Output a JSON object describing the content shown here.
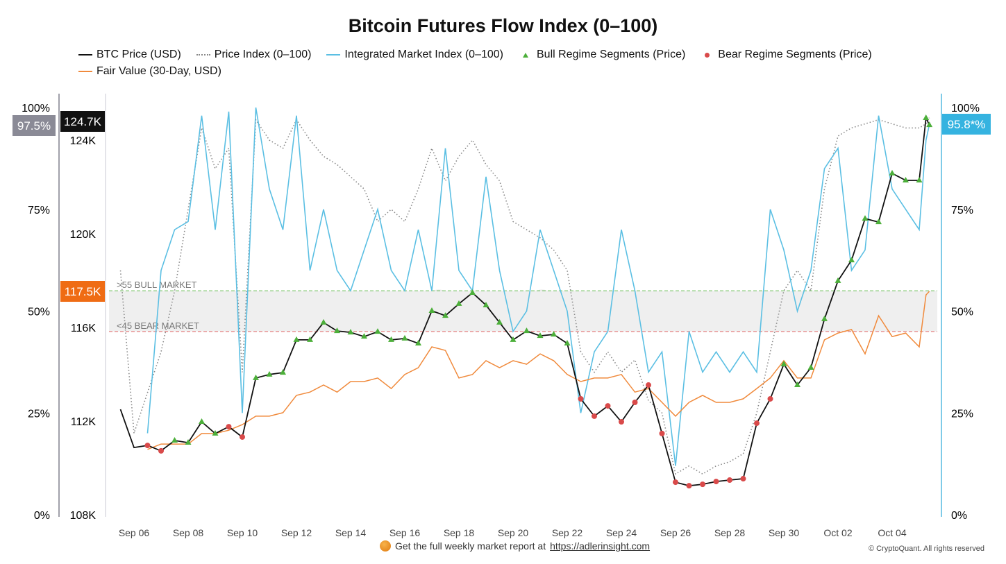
{
  "chart_data": {
    "type": "line",
    "title": "Bitcoin Futures Flow Index (0–100)",
    "legend": {
      "placement": "top",
      "entries": [
        "BTC Price (USD)",
        "Price Index (0–100)",
        "Integrated Market Index (0–100)",
        "Bull Regime Segments (Price)",
        "Bear Regime Segments (Price)",
        "Fair Value (30-Day, USD)"
      ]
    },
    "x_ticks": [
      "Sep 06",
      "Sep 08",
      "Sep 10",
      "Sep 12",
      "Sep 14",
      "Sep 16",
      "Sep 18",
      "Sep 20",
      "Sep 22",
      "Sep 24",
      "Sep 26",
      "Sep 28",
      "Sep 30",
      "Oct 02",
      "Oct 04"
    ],
    "left_pct_ticks": [
      "0%",
      "25%",
      "50%",
      "75%",
      "100%"
    ],
    "price_ticks": [
      "108K",
      "112K",
      "116K",
      "120K",
      "124K"
    ],
    "right_pct_ticks": [
      "0%",
      "25%",
      "50%",
      "75%",
      "100%"
    ],
    "price_ylim": [
      108,
      124
    ],
    "pct_ylim": [
      0,
      100
    ],
    "grid": false,
    "x": [
      "Sep 05 12:00",
      "Sep 06 00:00",
      "Sep 06 12:00",
      "Sep 07 00:00",
      "Sep 07 12:00",
      "Sep 08 00:00",
      "Sep 08 12:00",
      "Sep 09 00:00",
      "Sep 09 12:00",
      "Sep 10 00:00",
      "Sep 10 12:00",
      "Sep 11 00:00",
      "Sep 11 12:00",
      "Sep 12 00:00",
      "Sep 12 12:00",
      "Sep 13 00:00",
      "Sep 13 12:00",
      "Sep 14 00:00",
      "Sep 14 12:00",
      "Sep 15 00:00",
      "Sep 15 12:00",
      "Sep 16 00:00",
      "Sep 16 12:00",
      "Sep 17 00:00",
      "Sep 17 12:00",
      "Sep 18 00:00",
      "Sep 18 12:00",
      "Sep 19 00:00",
      "Sep 19 12:00",
      "Sep 20 00:00",
      "Sep 20 12:00",
      "Sep 21 00:00",
      "Sep 21 12:00",
      "Sep 22 00:00",
      "Sep 22 12:00",
      "Sep 23 00:00",
      "Sep 23 12:00",
      "Sep 24 00:00",
      "Sep 24 12:00",
      "Sep 25 00:00",
      "Sep 25 12:00",
      "Sep 26 00:00",
      "Sep 26 12:00",
      "Sep 27 00:00",
      "Sep 27 12:00",
      "Sep 28 00:00",
      "Sep 28 12:00",
      "Sep 29 00:00",
      "Sep 29 12:00",
      "Sep 30 00:00",
      "Sep 30 12:00",
      "Oct 01 00:00",
      "Oct 01 12:00",
      "Oct 02 00:00",
      "Oct 02 12:00",
      "Oct 03 00:00",
      "Oct 03 12:00",
      "Oct 04 00:00",
      "Oct 04 12:00",
      "Oct 05 00:00",
      "Oct 05 06:00",
      "Oct 05 09:00"
    ],
    "series": [
      {
        "name": "BTC Price (USD)",
        "axis": "price",
        "unit": "K USD",
        "color": "#111111",
        "values": [
          112.5,
          110.87,
          110.96,
          110.73,
          111.17,
          111.08,
          111.97,
          111.47,
          111.76,
          111.32,
          113.84,
          113.99,
          114.07,
          115.47,
          115.47,
          116.21,
          115.85,
          115.79,
          115.61,
          115.82,
          115.47,
          115.53,
          115.32,
          116.71,
          116.5,
          117.01,
          117.48,
          116.95,
          116.21,
          115.47,
          115.85,
          115.64,
          115.7,
          115.32,
          112.95,
          112.21,
          112.65,
          111.97,
          112.8,
          113.54,
          111.47,
          109.39,
          109.24,
          109.3,
          109.42,
          109.48,
          109.54,
          111.91,
          112.95,
          114.43,
          113.54,
          114.28,
          116.36,
          117.99,
          118.87,
          120.65,
          120.5,
          122.58,
          122.28,
          122.28,
          124.95,
          124.65
        ]
      },
      {
        "name": "Price Index (0–100)",
        "axis": "pct",
        "color": "#888888",
        "values": [
          60,
          20,
          30,
          40,
          55,
          75,
          95,
          85,
          90,
          35,
          97,
          92,
          90,
          97,
          92,
          88,
          86,
          83,
          80,
          72,
          75,
          72,
          80,
          90,
          82,
          88,
          92,
          86,
          82,
          72,
          70,
          68,
          65,
          60,
          40,
          35,
          40,
          35,
          38,
          28,
          25,
          10,
          12,
          10,
          12,
          13,
          15,
          25,
          40,
          55,
          60,
          55,
          80,
          93,
          95,
          96,
          97,
          96,
          95,
          95,
          96,
          97.5
        ]
      },
      {
        "name": "Integrated Market Index (0–100)",
        "axis": "pct",
        "color": "#5bbfe3",
        "values": [
          null,
          null,
          20,
          60,
          70,
          72,
          98,
          70,
          99,
          25,
          100,
          80,
          70,
          98,
          60,
          75,
          60,
          55,
          65,
          75,
          60,
          55,
          70,
          55,
          90,
          60,
          55,
          83,
          60,
          45,
          50,
          70,
          60,
          50,
          25,
          40,
          45,
          70,
          55,
          35,
          40,
          12,
          45,
          35,
          40,
          35,
          40,
          35,
          75,
          65,
          50,
          60,
          85,
          90,
          60,
          65,
          98,
          80,
          75,
          70,
          92,
          95.8
        ]
      },
      {
        "name": "Fair Value (30-Day, USD)",
        "axis": "price",
        "unit": "K USD",
        "color": "#f08a3c",
        "values": [
          null,
          null,
          110.79,
          111.02,
          111.02,
          111.02,
          111.47,
          111.47,
          111.61,
          111.85,
          112.21,
          112.21,
          112.36,
          113.1,
          113.24,
          113.54,
          113.24,
          113.69,
          113.69,
          113.84,
          113.39,
          113.99,
          114.28,
          115.17,
          115.02,
          113.84,
          113.99,
          114.58,
          114.28,
          114.58,
          114.43,
          114.87,
          114.58,
          113.99,
          113.69,
          113.84,
          113.84,
          113.99,
          113.24,
          113.39,
          112.8,
          112.21,
          112.8,
          113.1,
          112.8,
          112.8,
          112.95,
          113.39,
          113.84,
          114.58,
          113.84,
          113.84,
          115.47,
          115.76,
          115.91,
          114.87,
          116.5,
          115.61,
          115.76,
          115.17,
          117.39,
          117.54
        ]
      }
    ],
    "bull_segments": [
      [
        "Sep 07 12:00",
        "Sep 09 00:00"
      ],
      [
        "Sep 10 12:00",
        "Sep 22 00:00"
      ],
      [
        "Sep 30 00:00",
        "Oct 05 09:00"
      ]
    ],
    "bear_segments": [
      [
        "Sep 06 12:00",
        "Sep 07 00:00"
      ],
      [
        "Sep 09 12:00",
        "Sep 10 00:00"
      ],
      [
        "Sep 22 12:00",
        "Sep 29 12:00"
      ]
    ],
    "bull_color": "#4caf3a",
    "bear_color": "#d94a4a",
    "thresholds": {
      "bull": {
        "value": 55,
        "label": ">55 BULL MARKET",
        "color": "#6cbf5a"
      },
      "bear": {
        "value": 45,
        "label": "<45 BEAR MARKET",
        "color": "#e06a6a"
      }
    },
    "tags": {
      "price_index_last": {
        "text": "97.5%",
        "color": "#8a8a96"
      },
      "btc_last": {
        "text": "124.7K",
        "color": "#111111"
      },
      "fair_value_last": {
        "text": "117.5K",
        "color": "#ef6c14"
      },
      "market_index_last": {
        "text": "95.8*%",
        "color": "#35b3e0"
      }
    },
    "watermark": "CryptoQuant"
  },
  "footer": {
    "text": "Get the full weekly market report at",
    "link": "https://adlerinsight.com",
    "copyright": "© CryptoQuant. All rights reserved"
  }
}
